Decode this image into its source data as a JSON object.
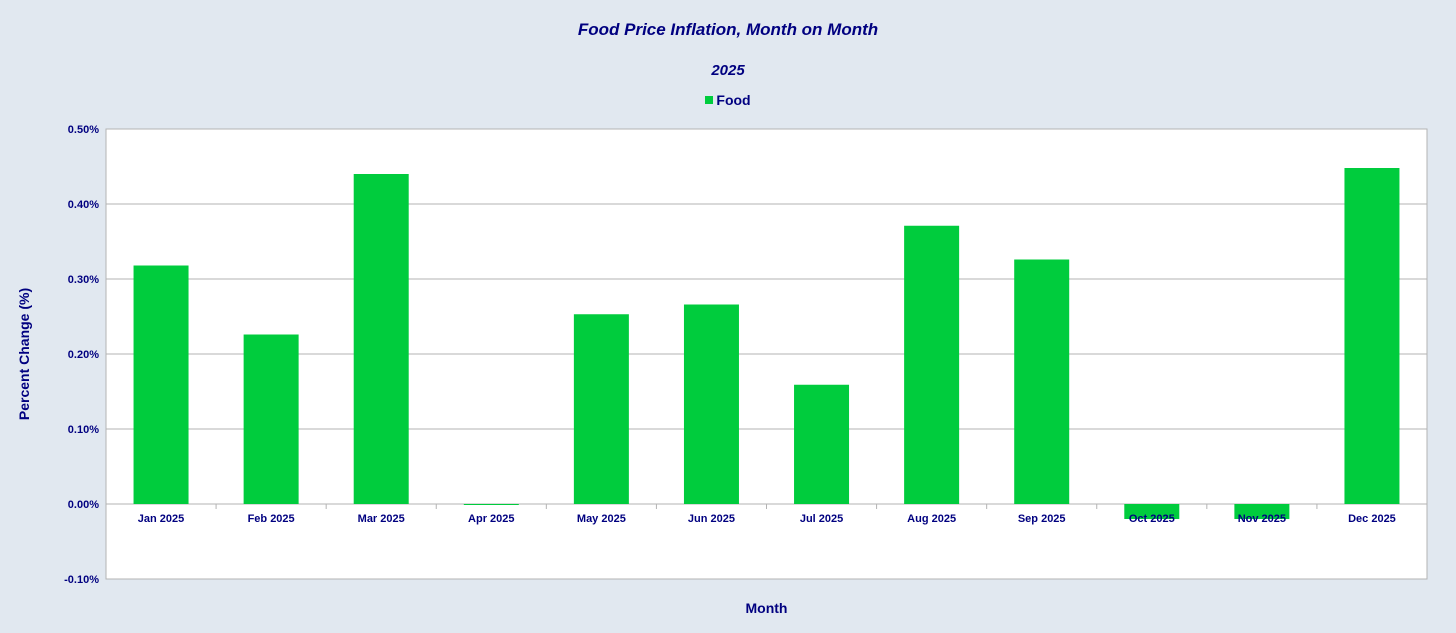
{
  "chart_data": {
    "type": "bar",
    "title": "Food Price Inflation, Month on Month",
    "subtitle": "2025",
    "xlabel": "Month",
    "ylabel": "Percent Change (%)",
    "ylim": [
      -0.1,
      0.5
    ],
    "yticks": [
      -0.1,
      0.0,
      0.1,
      0.2,
      0.3,
      0.4,
      0.5
    ],
    "ytick_labels": [
      "-0.10%",
      "0.00%",
      "0.10%",
      "0.20%",
      "0.30%",
      "0.40%",
      "0.50%"
    ],
    "grid": true,
    "legend": "top-center",
    "categories": [
      "Jan 2025",
      "Feb 2025",
      "Mar 2025",
      "Apr 2025",
      "May 2025",
      "Jun 2025",
      "Jul 2025",
      "Aug 2025",
      "Sep 2025",
      "Oct 2025",
      "Nov 2025",
      "Dec 2025"
    ],
    "series": [
      {
        "name": "Food",
        "color": "#00cc3d",
        "values": [
          0.318,
          0.226,
          0.44,
          -0.001,
          0.253,
          0.266,
          0.159,
          0.371,
          0.326,
          -0.02,
          -0.02,
          0.448
        ]
      }
    ]
  },
  "colors": {
    "background": "#e1e8f0",
    "plot_background": "#ffffff",
    "text": "#000080",
    "grid": "#b3b3b3"
  }
}
